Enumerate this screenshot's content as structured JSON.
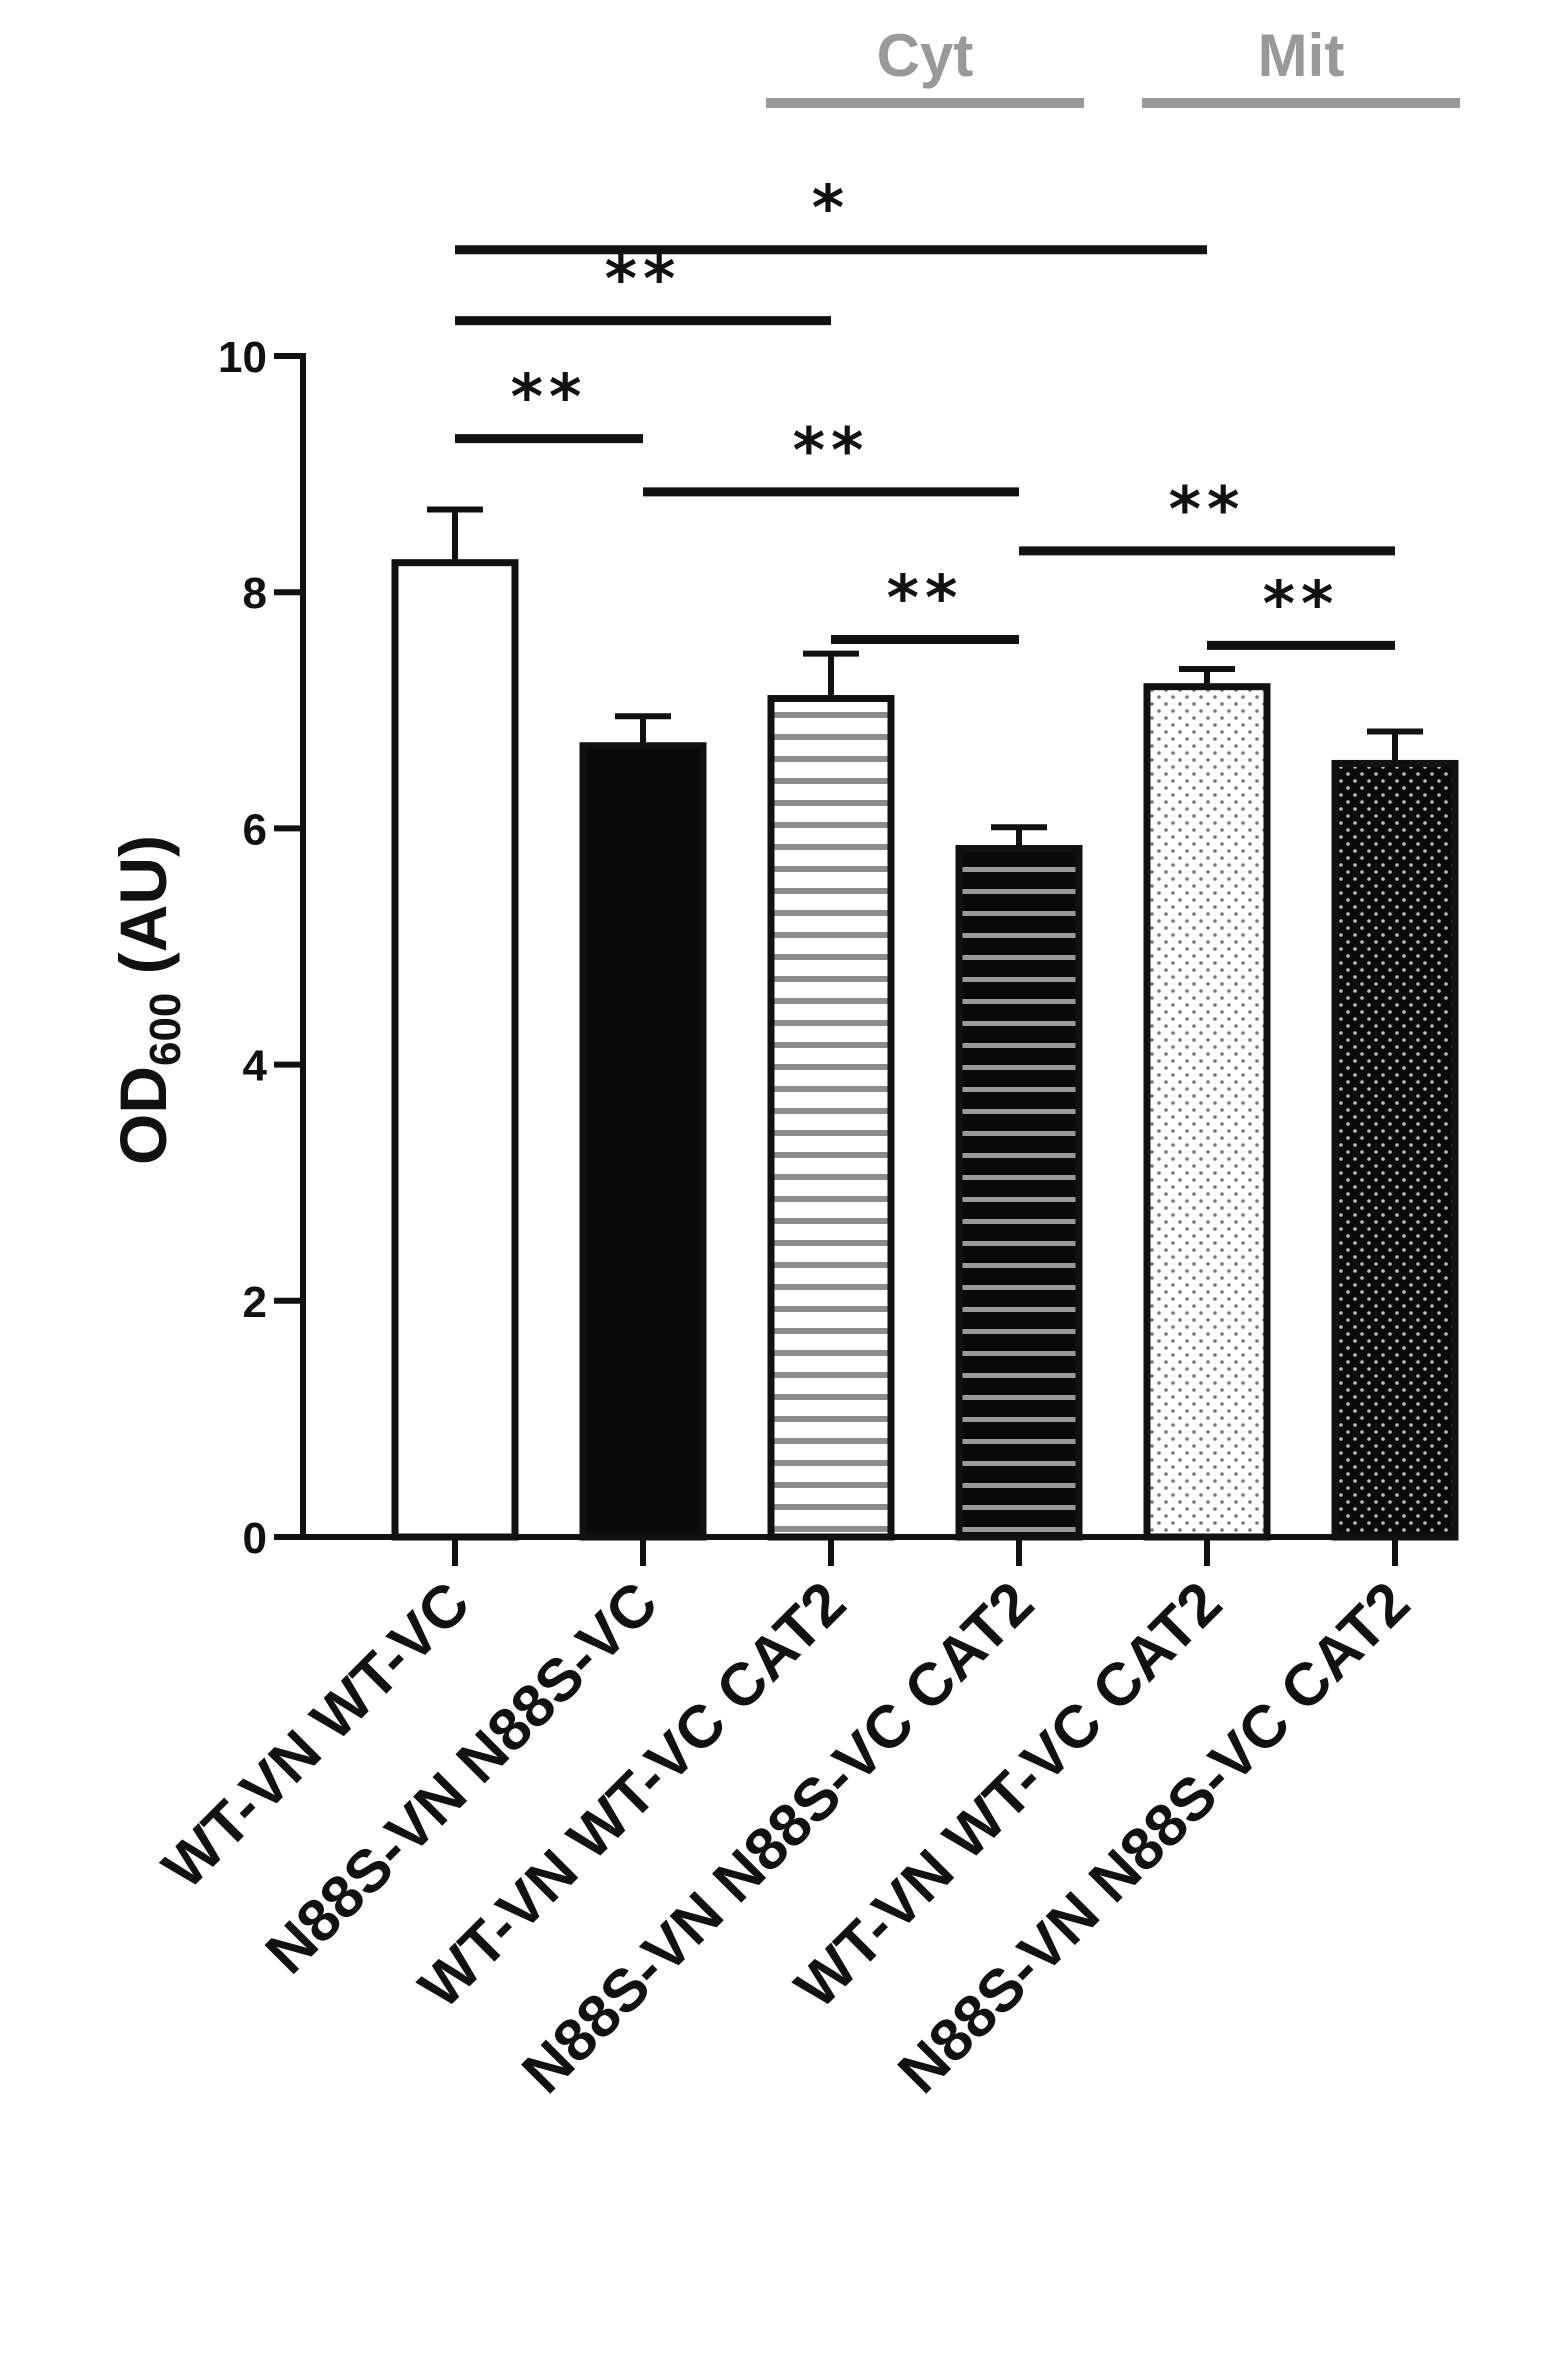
{
  "chart_data": {
    "type": "bar",
    "ylabel": {
      "main": "OD",
      "sub": "600",
      "unit": " (AU)"
    },
    "ylim": [
      0,
      10
    ],
    "yticks": [
      "0",
      "2",
      "4",
      "6",
      "8",
      "10"
    ],
    "grid": false,
    "categories": [
      "WT-VN WT-VC",
      "N88S-VN N88S-VC",
      "WT-VN WT-VC CAT2",
      "N88S-VN N88S-VC CAT2",
      "WT-VN WT-VC CAT2",
      "N88S-VN N88S-VC CAT2"
    ],
    "values": [
      8.25,
      6.7,
      7.1,
      5.83,
      7.2,
      6.55
    ],
    "errors": [
      0.45,
      0.25,
      0.38,
      0.18,
      0.15,
      0.27
    ],
    "fills": [
      "white",
      "black",
      "h-stripes-light",
      "h-stripes-dark",
      "dots-light",
      "dots-dark"
    ],
    "groups": [
      {
        "label": "Cyt",
        "from": 2,
        "to": 3
      },
      {
        "label": "Mit",
        "from": 4,
        "to": 5
      }
    ],
    "significance": [
      {
        "from": 0,
        "to": 4,
        "label": "*",
        "y": 10.9
      },
      {
        "from": 0,
        "to": 2,
        "label": "**",
        "y": 10.3
      },
      {
        "from": 0,
        "to": 1,
        "label": "**",
        "y": 9.3
      },
      {
        "from": 1,
        "to": 3,
        "label": "**",
        "y": 8.85
      },
      {
        "from": 3,
        "to": 5,
        "label": "**",
        "y": 8.35
      },
      {
        "from": 2,
        "to": 3,
        "label": "**",
        "y": 7.6
      },
      {
        "from": 4,
        "to": 5,
        "label": "**",
        "y": 7.55
      }
    ],
    "colors": {
      "axis": "#111111",
      "group": "#999999",
      "stripe_light": "#8c8c8c",
      "stripe_dark": "#9a9a9a"
    }
  }
}
